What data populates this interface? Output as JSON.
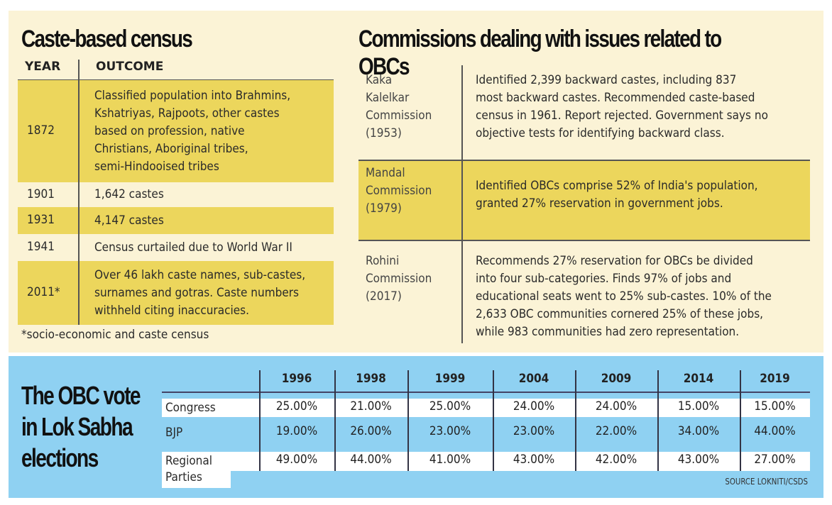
{
  "census": {
    "title": "Caste-based census",
    "headers": [
      "YEAR",
      "OUTCOME"
    ],
    "rows": [
      {
        "year": "1872",
        "outcome": [
          "Classified population into Brahmins,",
          "Kshatriyas, Rajpoots, other castes",
          "based on profession, native",
          "Christians, Aboriginal tribes,",
          "semi-Hindooised tribes"
        ],
        "highlight": true
      },
      {
        "year": "1901",
        "outcome": [
          "1,642 castes"
        ],
        "highlight": false
      },
      {
        "year": "1931",
        "outcome": [
          "4,147 castes"
        ],
        "highlight": true
      },
      {
        "year": "1941",
        "outcome": [
          "Census curtailed due to World War II"
        ],
        "highlight": false
      },
      {
        "year": "2011*",
        "outcome": [
          "Over 46 lakh caste names, sub-castes,",
          "surnames and gotras. Caste numbers",
          "withheld citing inaccuracies."
        ],
        "highlight": true
      }
    ],
    "footnote": "*socio-economic and caste census"
  },
  "commissions": {
    "title": "Commissions dealing with issues related to OBCs",
    "rows": [
      {
        "name": [
          "Kaka",
          "Kalelkar",
          "Commission",
          "(1953)"
        ],
        "text": [
          "Identified 2,399 backward castes, including 837",
          "most backward castes. Recommended caste-based",
          "census in 1961. Report rejected. Government says no",
          "objective tests for identifying backward class."
        ]
      },
      {
        "name": [
          "Mandal",
          "Commission",
          "(1979)"
        ],
        "text": [
          "Identified OBCs comprise 52% of India's population,",
          "granted 27% reservation in government jobs."
        ]
      },
      {
        "name": [
          "Rohini",
          "Commission",
          "(2017)"
        ],
        "text": [
          "Recommends 27% reservation for OBCs be divided",
          "into four sub-categories. Finds 97% of jobs and",
          "educational seats went to 25% sub-castes. 10% of the",
          "2,633 OBC communities cornered 25% of these jobs,",
          "while 983 communities had zero representation."
        ]
      }
    ]
  },
  "obc_vote": {
    "title": [
      "The OBC vote",
      "in Lok Sabha",
      "elections"
    ],
    "years": [
      "1996",
      "1998",
      "1999",
      "2004",
      "2009",
      "2014",
      "2019"
    ],
    "rows": [
      {
        "party": [
          "Congress"
        ],
        "values": [
          "25.00%",
          "21.00%",
          "25.00%",
          "24.00%",
          "24.00%",
          "15.00%",
          "15.00%"
        ]
      },
      {
        "party": [
          "BJP"
        ],
        "values": [
          "19.00%",
          "26.00%",
          "23.00%",
          "23.00%",
          "22.00%",
          "34.00%",
          "44.00%"
        ]
      },
      {
        "party": [
          "Regional",
          "Parties"
        ],
        "values": [
          "49.00%",
          "44.00%",
          "41.00%",
          "43.00%",
          "42.00%",
          "43.00%",
          "27.00%"
        ]
      }
    ],
    "source": "SOURCE LOKNITI/CSDS"
  },
  "colors": {
    "cream": "#fbf3d6",
    "highlight": "#ecd65c",
    "blue": "#8fd1f2"
  }
}
